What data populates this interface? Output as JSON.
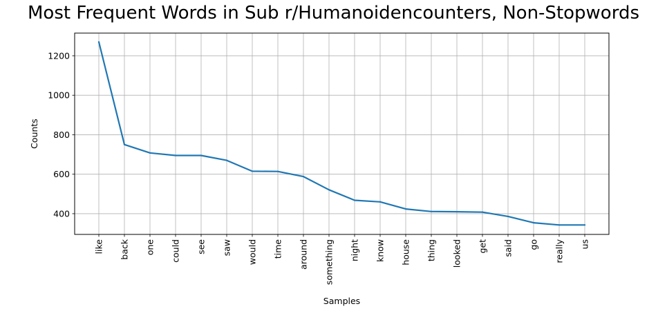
{
  "chart_data": {
    "type": "line",
    "title": "Most Frequent Words in Sub r/Humanoidencounters, Non-Stopwords",
    "xlabel": "Samples",
    "ylabel": "Counts",
    "categories": [
      "like",
      "back",
      "one",
      "could",
      "see",
      "saw",
      "would",
      "time",
      "around",
      "something",
      "night",
      "know",
      "house",
      "thing",
      "looked",
      "get",
      "said",
      "go",
      "really",
      "us"
    ],
    "series": [
      {
        "values": [
          1270,
          750,
          708,
          695,
          695,
          670,
          615,
          614,
          588,
          521,
          468,
          460,
          424,
          411,
          410,
          408,
          386,
          354,
          343,
          343
        ]
      }
    ],
    "ylim": [
      295,
      1315
    ],
    "yticks": [
      400,
      600,
      800,
      1000,
      1200
    ],
    "grid": true,
    "line_color": "#1f77b4"
  }
}
